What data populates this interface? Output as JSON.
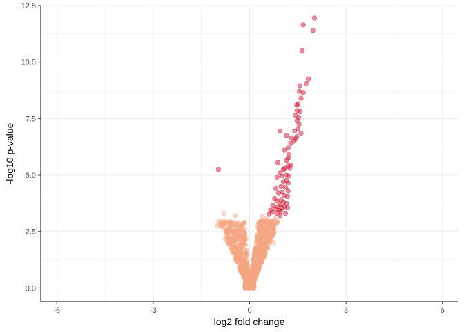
{
  "chart_data": {
    "type": "scatter",
    "title": "",
    "xlabel": "log2 fold change",
    "ylabel": "-log10 p-value",
    "xlim": [
      -6.5,
      6.5
    ],
    "ylim": [
      -0.6,
      12.5
    ],
    "x_ticks": [
      -6,
      -3,
      0,
      3,
      6
    ],
    "x_tick_labels": [
      "-6",
      "-3",
      "0",
      "3",
      "6"
    ],
    "y_ticks": [
      0,
      2.5,
      5,
      7.5,
      10,
      12.5
    ],
    "y_tick_labels": [
      "0.0",
      "2.5",
      "5.0",
      "7.5",
      "10.0",
      "12.5"
    ],
    "grid": true,
    "colors": {
      "not_significant": "#f4a582",
      "significant": "#ca0020",
      "grid": "#ebebeb",
      "axis": "#000000"
    },
    "series": [
      {
        "color": "#ca0020",
        "points": [
          [
            2.02,
            11.95
          ],
          [
            1.67,
            11.65
          ],
          [
            1.97,
            11.4
          ],
          [
            1.64,
            10.5
          ],
          [
            1.83,
            9.25
          ],
          [
            1.76,
            9.05
          ],
          [
            1.56,
            8.95
          ],
          [
            1.55,
            8.7
          ],
          [
            1.67,
            8.65
          ],
          [
            1.6,
            8.4
          ],
          [
            1.5,
            8.15
          ],
          [
            1.47,
            8.1
          ],
          [
            1.48,
            7.85
          ],
          [
            1.57,
            7.8
          ],
          [
            1.42,
            7.65
          ],
          [
            1.53,
            7.55
          ],
          [
            1.48,
            7.4
          ],
          [
            1.54,
            7.25
          ],
          [
            1.5,
            7.05
          ],
          [
            1.4,
            6.95
          ],
          [
            0.95,
            6.95
          ],
          [
            1.6,
            6.85
          ],
          [
            1.15,
            6.75
          ],
          [
            1.3,
            6.65
          ],
          [
            1.47,
            6.7
          ],
          [
            1.43,
            6.6
          ],
          [
            1.38,
            6.5
          ],
          [
            1.28,
            6.4
          ],
          [
            1.2,
            6.2
          ],
          [
            1.08,
            6.1
          ],
          [
            1.22,
            5.9
          ],
          [
            1.2,
            5.75
          ],
          [
            1.15,
            5.65
          ],
          [
            1.28,
            5.45
          ],
          [
            1.2,
            5.4
          ],
          [
            0.88,
            5.55
          ],
          [
            1.25,
            5.3
          ],
          [
            1.1,
            5.3
          ],
          [
            1.05,
            5.25
          ],
          [
            0.95,
            5.1
          ],
          [
            1.15,
            5.0
          ],
          [
            1.22,
            4.95
          ],
          [
            1.0,
            4.95
          ],
          [
            0.85,
            4.9
          ],
          [
            1.15,
            4.75
          ],
          [
            1.05,
            4.7
          ],
          [
            1.2,
            4.65
          ],
          [
            0.98,
            4.5
          ],
          [
            1.12,
            4.45
          ],
          [
            0.82,
            4.4
          ],
          [
            1.2,
            4.3
          ],
          [
            1.0,
            4.25
          ],
          [
            0.9,
            4.2
          ],
          [
            1.07,
            4.1
          ],
          [
            1.18,
            4.05
          ],
          [
            0.78,
            3.95
          ],
          [
            0.98,
            3.9
          ],
          [
            0.85,
            3.85
          ],
          [
            1.05,
            3.8
          ],
          [
            1.15,
            3.75
          ],
          [
            0.95,
            3.7
          ],
          [
            0.72,
            3.65
          ],
          [
            0.88,
            3.6
          ],
          [
            1.0,
            3.55
          ],
          [
            0.8,
            3.5
          ],
          [
            0.65,
            3.45
          ],
          [
            0.92,
            3.45
          ],
          [
            0.7,
            3.35
          ],
          [
            0.85,
            3.3
          ],
          [
            0.6,
            3.25
          ],
          [
            0.95,
            3.2
          ],
          [
            1.12,
            3.3
          ],
          [
            1.18,
            3.55
          ],
          [
            1.08,
            3.6
          ],
          [
            0.97,
            3.4
          ],
          [
            -0.97,
            5.25
          ]
        ]
      },
      {
        "color": "#f4a582",
        "points": [
          [
            -0.8,
            3.3
          ],
          [
            -0.45,
            3.2
          ],
          [
            -0.95,
            2.95
          ],
          [
            -1.0,
            2.75
          ],
          [
            -0.6,
            2.55
          ],
          [
            -0.7,
            2.6
          ],
          [
            -0.5,
            2.45
          ],
          [
            -0.3,
            2.3
          ],
          [
            -0.55,
            2.2
          ],
          [
            -0.75,
            2.15
          ],
          [
            -0.4,
            2.05
          ],
          [
            -0.65,
            1.95
          ],
          [
            0.4,
            3.15
          ],
          [
            0.52,
            3.05
          ],
          [
            0.35,
            2.9
          ],
          [
            0.45,
            2.75
          ],
          [
            0.6,
            2.65
          ],
          [
            0.3,
            2.55
          ],
          [
            0.55,
            2.45
          ],
          [
            0.7,
            2.35
          ],
          [
            0.4,
            2.25
          ],
          [
            0.62,
            2.15
          ],
          [
            0.5,
            2.05
          ],
          [
            0.75,
            2.0
          ],
          [
            0.33,
            1.95
          ],
          [
            0.68,
            2.9
          ],
          [
            0.58,
            2.95
          ],
          [
            0.8,
            3.05
          ],
          [
            0.25,
            2.7
          ]
        ]
      }
    ]
  }
}
